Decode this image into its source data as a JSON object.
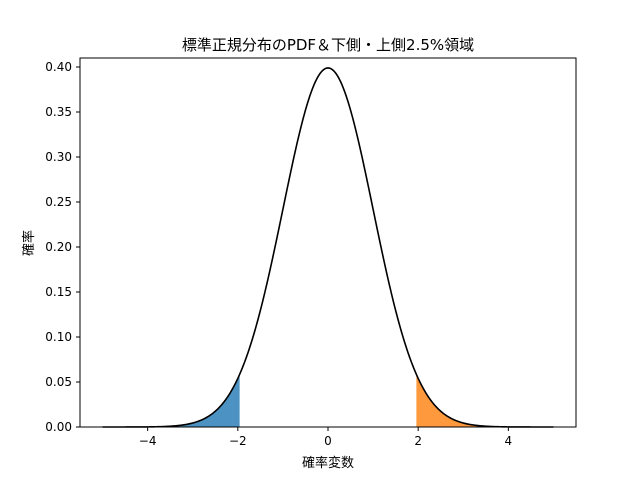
{
  "chart_data": {
    "type": "area",
    "title": "標準正規分布のPDF＆下側・上側2.5%領域",
    "xlabel": "確率変数",
    "ylabel": "確率",
    "xlim": [
      -5.5,
      5.5
    ],
    "ylim": [
      0.0,
      0.41
    ],
    "x_ticks": [
      -4,
      -2,
      0,
      2,
      4
    ],
    "x_tick_labels": [
      "−4",
      "−2",
      "0",
      "2",
      "4"
    ],
    "y_ticks": [
      0.0,
      0.05,
      0.1,
      0.15,
      0.2,
      0.25,
      0.3,
      0.35,
      0.4
    ],
    "y_tick_labels": [
      "0.00",
      "0.05",
      "0.10",
      "0.15",
      "0.20",
      "0.25",
      "0.30",
      "0.35",
      "0.40"
    ],
    "grid": false,
    "curve": {
      "function": "standard normal pdf",
      "x_range": [
        -5,
        5
      ],
      "color": "#000000"
    },
    "shaded_regions": [
      {
        "x_from": -5,
        "x_to": -1.96,
        "color": "#1f77b4"
      },
      {
        "x_from": 1.96,
        "x_to": 5,
        "color": "#ff7f0e"
      }
    ]
  }
}
